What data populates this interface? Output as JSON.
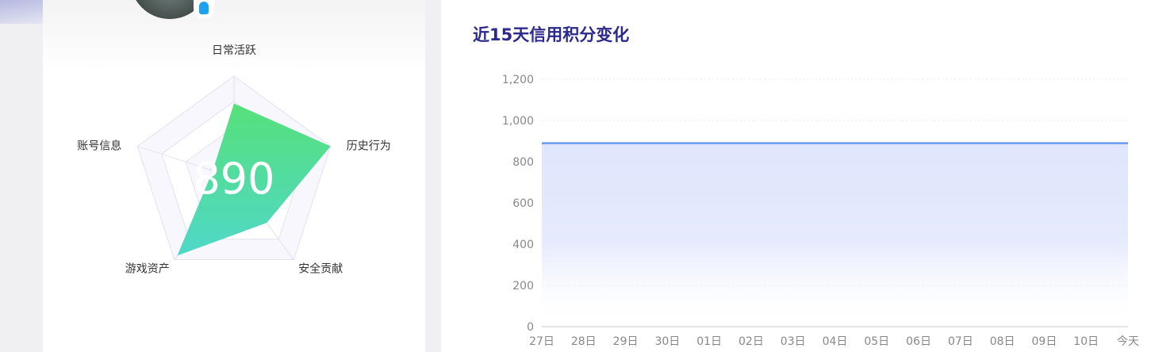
{
  "profile": {
    "score": "890",
    "icon": "qq-icon"
  },
  "radar": {
    "indicators": [
      "日常活跃",
      "历史行为",
      "安全贡献",
      "游戏资产",
      "账号信息"
    ],
    "values": [
      0.73,
      1.0,
      0.55,
      0.95,
      0.22
    ],
    "max": 1,
    "gradient": [
      "#56e07a",
      "#4fd8c8"
    ]
  },
  "chart_data": {
    "type": "area",
    "title": "近15天信用积分变化",
    "categories": [
      "27日",
      "28日",
      "29日",
      "30日",
      "01日",
      "02日",
      "03日",
      "04日",
      "05日",
      "06日",
      "07日",
      "08日",
      "09日",
      "10日",
      "今天"
    ],
    "values": [
      890,
      890,
      890,
      890,
      890,
      890,
      890,
      890,
      890,
      890,
      890,
      890,
      890,
      890,
      890
    ],
    "yticks": [
      "0",
      "200",
      "400",
      "600",
      "800",
      "1,000",
      "1,200"
    ],
    "ylim": [
      0,
      1200
    ],
    "grid": true,
    "line_color": "#6a9af0",
    "fill_color": "#dfe5fc"
  }
}
